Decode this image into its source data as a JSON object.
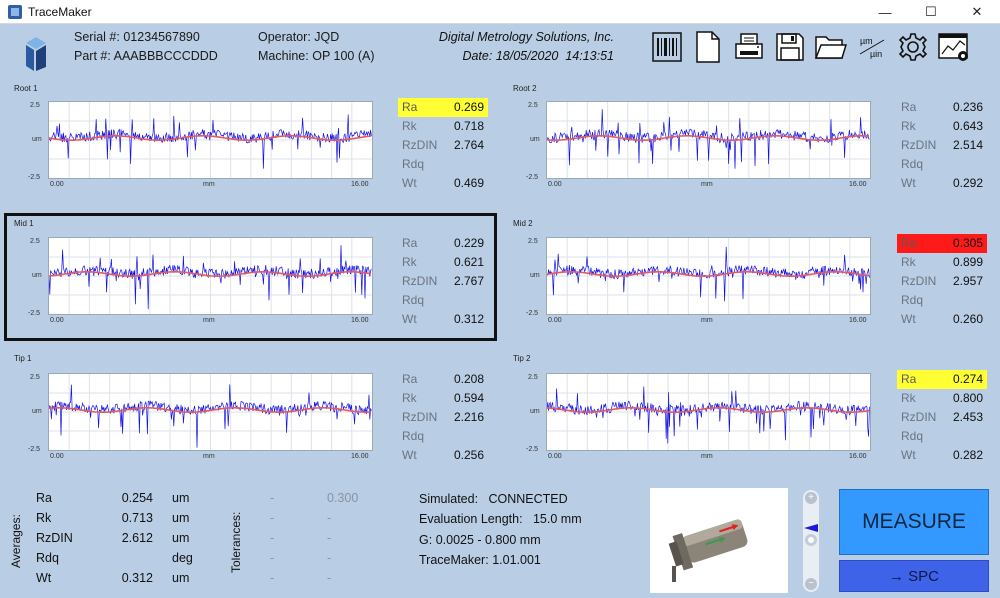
{
  "window": {
    "title": "TraceMaker",
    "minimize": "—",
    "maximize": "☐",
    "close": "✕"
  },
  "header": {
    "serial_label": "Serial #:",
    "serial": "01234567890",
    "part_label": "Part #:",
    "part": "AAABBBCCCDDD",
    "operator_label": "Operator:",
    "operator": "JQD",
    "machine_label": "Machine:",
    "machine": "OP 100 (A)",
    "company": "Digital Metrology Solutions, Inc.",
    "date_label": "Date:",
    "date": "18/05/2020",
    "time": "14:13:51",
    "units_top": "µm",
    "units_bottom": "µin"
  },
  "toolbar_icons": [
    "barcode-icon",
    "document-icon",
    "print-icon",
    "save-icon",
    "folder-icon",
    "units-toggle-icon",
    "settings-icon",
    "image-settings-icon"
  ],
  "colors": {
    "trace": "#1212e6",
    "mean_line": "#e85a5a",
    "highlight_yellow": "#ffff33",
    "highlight_red": "#ff1a1a",
    "background": "#b9cde5",
    "measure": "#3399ff",
    "spc": "#3e63e8"
  },
  "axis": {
    "ymax": "2.5",
    "ymin": "-2.5",
    "yunit": "um",
    "xmin": "0.00",
    "xunit": "mm",
    "xmax": "16.00"
  },
  "chart_data": [
    {
      "type": "line",
      "title": "Root 1",
      "xlabel": "mm",
      "ylabel": "um",
      "xlim": [
        0,
        16
      ],
      "ylim": [
        -2.5,
        2.5
      ],
      "grid": true,
      "series": [
        {
          "values": "surface roughness trace"
        }
      ]
    },
    {
      "type": "line",
      "title": "Root 2",
      "xlabel": "mm",
      "ylabel": "um",
      "xlim": [
        0,
        16
      ],
      "ylim": [
        -2.5,
        2.5
      ],
      "grid": true
    },
    {
      "type": "line",
      "title": "Mid 1",
      "xlabel": "mm",
      "ylabel": "um",
      "xlim": [
        0,
        16
      ],
      "ylim": [
        -2.5,
        2.5
      ],
      "grid": true
    },
    {
      "type": "line",
      "title": "Mid 2",
      "xlabel": "mm",
      "ylabel": "um",
      "xlim": [
        0,
        16
      ],
      "ylim": [
        -2.5,
        2.5
      ],
      "grid": true
    },
    {
      "type": "line",
      "title": "Tip 1",
      "xlabel": "mm",
      "ylabel": "um",
      "xlim": [
        0,
        16
      ],
      "ylim": [
        -2.5,
        2.5
      ],
      "grid": true
    },
    {
      "type": "line",
      "title": "Tip 2",
      "xlabel": "mm",
      "ylabel": "um",
      "xlim": [
        0,
        16
      ],
      "ylim": [
        -2.5,
        2.5
      ],
      "grid": true
    }
  ],
  "panels": [
    {
      "name": "Root 1",
      "stats": [
        {
          "label": "Ra",
          "value": "0.269",
          "hl": "yellow"
        },
        {
          "label": "Rk",
          "value": "0.718"
        },
        {
          "label": "RzDIN",
          "value": "2.764"
        },
        {
          "label": "Rdq",
          "value": ""
        },
        {
          "label": "Wt",
          "value": "0.469"
        }
      ]
    },
    {
      "name": "Root 2",
      "stats": [
        {
          "label": "Ra",
          "value": "0.236"
        },
        {
          "label": "Rk",
          "value": "0.643"
        },
        {
          "label": "RzDIN",
          "value": "2.514"
        },
        {
          "label": "Rdq",
          "value": ""
        },
        {
          "label": "Wt",
          "value": "0.292"
        }
      ]
    },
    {
      "name": "Mid 1",
      "stats": [
        {
          "label": "Ra",
          "value": "0.229"
        },
        {
          "label": "Rk",
          "value": "0.621"
        },
        {
          "label": "RzDIN",
          "value": "2.767"
        },
        {
          "label": "Rdq",
          "value": ""
        },
        {
          "label": "Wt",
          "value": "0.312"
        }
      ]
    },
    {
      "name": "Mid 2",
      "stats": [
        {
          "label": "Ra",
          "value": "0.305",
          "hl": "red"
        },
        {
          "label": "Rk",
          "value": "0.899"
        },
        {
          "label": "RzDIN",
          "value": "2.957"
        },
        {
          "label": "Rdq",
          "value": ""
        },
        {
          "label": "Wt",
          "value": "0.260"
        }
      ]
    },
    {
      "name": "Tip 1",
      "stats": [
        {
          "label": "Ra",
          "value": "0.208"
        },
        {
          "label": "Rk",
          "value": "0.594"
        },
        {
          "label": "RzDIN",
          "value": "2.216"
        },
        {
          "label": "Rdq",
          "value": ""
        },
        {
          "label": "Wt",
          "value": "0.256"
        }
      ]
    },
    {
      "name": "Tip 2",
      "stats": [
        {
          "label": "Ra",
          "value": "0.274",
          "hl": "yellow"
        },
        {
          "label": "Rk",
          "value": "0.800"
        },
        {
          "label": "RzDIN",
          "value": "2.453"
        },
        {
          "label": "Rdq",
          "value": ""
        },
        {
          "label": "Wt",
          "value": "0.282"
        }
      ]
    }
  ],
  "averages": {
    "title": "Averages:",
    "rows": [
      {
        "label": "Ra",
        "value": "0.254",
        "unit": "um"
      },
      {
        "label": "Rk",
        "value": "0.713",
        "unit": "um"
      },
      {
        "label": "RzDIN",
        "value": "2.612",
        "unit": "um"
      },
      {
        "label": "Rdq",
        "value": "",
        "unit": "deg"
      },
      {
        "label": "Wt",
        "value": "0.312",
        "unit": "um"
      }
    ]
  },
  "tolerances": {
    "title": "Tolerances:",
    "rows": [
      {
        "min": "-",
        "max": "0.300"
      },
      {
        "min": "-",
        "max": "-"
      },
      {
        "min": "-",
        "max": "-"
      },
      {
        "min": "-",
        "max": "-"
      },
      {
        "min": "-",
        "max": "-"
      }
    ]
  },
  "info": {
    "simulated_label": "Simulated:",
    "simulated": "CONNECTED",
    "eval_label": "Evaluation Length:",
    "eval": "15.0 mm",
    "g_label": "G:",
    "g": "0.0025 - 0.800 mm",
    "version_label": "TraceMaker:",
    "version": "1.01.001"
  },
  "buttons": {
    "measure": "MEASURE",
    "spc": "→ SPC"
  },
  "slider": {
    "plus": "+",
    "minus": "−"
  }
}
